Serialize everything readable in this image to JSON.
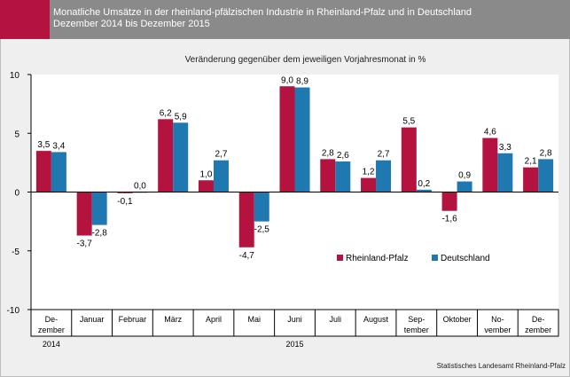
{
  "header": {
    "title_line1": "Monatliche Umsätze in der rheinland-pfälzischen Industrie in Rheinland-Pfalz und in Deutschland",
    "title_line2": "Dezember 2014 bis Dezember 2015"
  },
  "source": "Statistisches Landesamt Rheinland-Pfalz",
  "chart_data": {
    "type": "bar",
    "title": "Veränderung gegenüber dem jeweiligen Vorjahresmonat in %",
    "categories": [
      [
        "De-",
        "zember"
      ],
      [
        "Januar"
      ],
      [
        "Februar"
      ],
      [
        "März"
      ],
      [
        "April"
      ],
      [
        "Mai"
      ],
      [
        "Juni"
      ],
      [
        "Juli"
      ],
      [
        "August"
      ],
      [
        "Sep-",
        "tember"
      ],
      [
        "Oktober"
      ],
      [
        "No-",
        "vember"
      ],
      [
        "De-",
        "zember"
      ]
    ],
    "year_labels": [
      {
        "label": "2014",
        "category_index": 0
      },
      {
        "label": "2015",
        "category_index": 6
      }
    ],
    "series": [
      {
        "name": "Rheinland-Pfalz",
        "color": "#b4123f",
        "values": [
          3.5,
          -3.7,
          -0.1,
          6.2,
          1.0,
          -4.7,
          9.0,
          2.8,
          1.2,
          5.5,
          -1.6,
          4.6,
          2.1
        ],
        "labels": [
          "3,5",
          "-3,7",
          "-0,1",
          "6,2",
          "1,0",
          "-4,7",
          "9,0",
          "2,8",
          "1,2",
          "5,5",
          "-1,6",
          "4,6",
          "2,1"
        ]
      },
      {
        "name": "Deutschland",
        "color": "#1f78b0",
        "values": [
          3.4,
          -2.8,
          0.0,
          5.9,
          2.7,
          -2.5,
          8.9,
          2.6,
          2.7,
          0.2,
          0.9,
          3.3,
          2.8
        ],
        "labels": [
          "3,4",
          "-2,8",
          "0,0",
          "5,9",
          "2,7",
          "-2,5",
          "8,9",
          "2,6",
          "2,7",
          "0,2",
          "0,9",
          "3,3",
          "2,8"
        ]
      }
    ],
    "yticks": [
      10,
      5,
      0,
      -5,
      -10
    ],
    "ytick_labels": [
      "10",
      "5",
      "0",
      "-5",
      "-10"
    ],
    "ylim": [
      -10,
      10
    ],
    "legend_position": "lower-right-inside"
  }
}
